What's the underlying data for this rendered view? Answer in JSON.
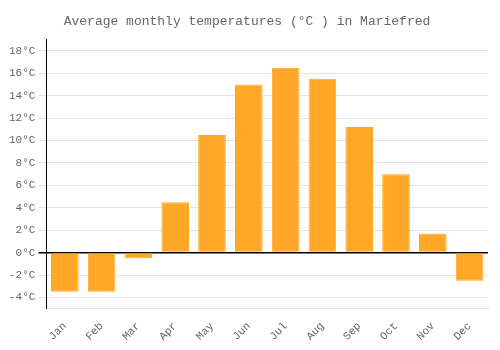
{
  "chart_data": {
    "type": "bar",
    "title": "Average monthly temperatures (°C ) in Mariefred",
    "categories": [
      "Jan",
      "Feb",
      "Mar",
      "Apr",
      "May",
      "Jun",
      "Jul",
      "Aug",
      "Sep",
      "Oct",
      "Nov",
      "Dec"
    ],
    "values": [
      -3.5,
      -3.5,
      -0.5,
      4.5,
      10.5,
      15.0,
      16.5,
      15.5,
      11.2,
      7.0,
      1.7,
      -2.5
    ],
    "color": "#FFA726",
    "ylim": [
      -5,
      19
    ],
    "yticks": [
      {
        "value": -4,
        "label": "-4°C"
      },
      {
        "value": -2,
        "label": "-2°C"
      },
      {
        "value": 0,
        "label": "0°C"
      },
      {
        "value": 2,
        "label": "2°C"
      },
      {
        "value": 4,
        "label": "4°C"
      },
      {
        "value": 6,
        "label": "6°C"
      },
      {
        "value": 8,
        "label": "8°C"
      },
      {
        "value": 10,
        "label": "10°C"
      },
      {
        "value": 12,
        "label": "12°C"
      },
      {
        "value": 14,
        "label": "14°C"
      },
      {
        "value": 16,
        "label": "16°C"
      },
      {
        "value": 18,
        "label": "18°C"
      }
    ],
    "grid": true
  }
}
